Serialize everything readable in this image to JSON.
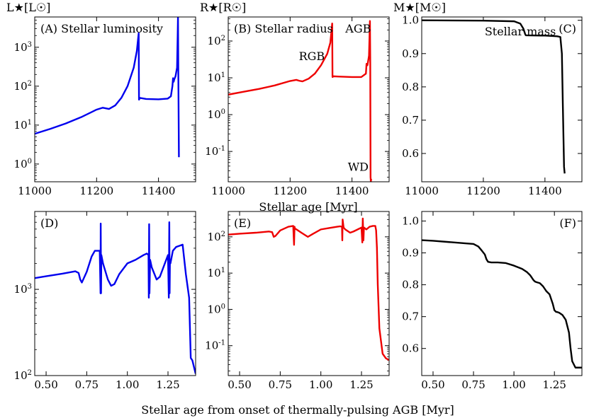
{
  "figure": {
    "xlabel_top": "Stellar age [Myr]",
    "xlabel_bottom": "Stellar age from onset of thermally-pulsing AGB [Myr]"
  },
  "chart_data": [
    {
      "id": "A",
      "type": "line",
      "panel_label": "(A) Stellar luminosity",
      "ylabel": "L★[L☉]",
      "yscale": "log",
      "ylim": [
        0.35,
        6000
      ],
      "xlim": [
        11000,
        11520
      ],
      "xticks": [
        11000,
        11200,
        11400
      ],
      "yticks": [
        1,
        10,
        100,
        1000
      ],
      "ytick_labels": [
        "10^0",
        "10^1",
        "10^2",
        "10^3"
      ],
      "series": [
        {
          "name": "Luminosity",
          "color": "#0000ee",
          "x": [
            11000,
            11050,
            11100,
            11150,
            11200,
            11220,
            11230,
            11240,
            11260,
            11280,
            11300,
            11320,
            11330,
            11336,
            11337,
            11340,
            11360,
            11400,
            11430,
            11440,
            11445,
            11447,
            11449,
            11450,
            11451,
            11455,
            11460,
            11462,
            11463,
            11464,
            11466
          ],
          "y": [
            6,
            8,
            11,
            16,
            25,
            28,
            27,
            26,
            32,
            50,
            100,
            300,
            800,
            2300,
            45,
            50,
            47,
            46,
            48,
            55,
            100,
            160,
            130,
            140,
            150,
            180,
            300,
            2000,
            6000,
            300,
            1.5
          ]
        }
      ],
      "annotations": []
    },
    {
      "id": "B",
      "type": "line",
      "panel_label": "(B) Stellar radius",
      "ylabel": "R★[R☉]",
      "yscale": "log",
      "ylim": [
        0.015,
        450
      ],
      "xlim": [
        11000,
        11520
      ],
      "xticks": [
        11000,
        11200,
        11400
      ],
      "yticks": [
        0.1,
        1,
        10,
        100
      ],
      "ytick_labels": [
        "10^-1",
        "10^0",
        "10^1",
        "10^2"
      ],
      "series": [
        {
          "name": "Radius",
          "color": "#ee0000",
          "x": [
            11000,
            11050,
            11100,
            11150,
            11200,
            11220,
            11230,
            11240,
            11260,
            11280,
            11300,
            11320,
            11330,
            11336,
            11337,
            11340,
            11360,
            11400,
            11430,
            11445,
            11447,
            11450,
            11455,
            11458,
            11459,
            11460,
            11461,
            11462
          ],
          "y": [
            3.5,
            4.2,
            5.0,
            6.2,
            8.2,
            8.8,
            8.3,
            8.0,
            9.5,
            13,
            22,
            45,
            90,
            300,
            10.5,
            11,
            10.8,
            10.5,
            10.5,
            13,
            24,
            22,
            40,
            350,
            30,
            0.02,
            0.015,
            0.018
          ]
        }
      ],
      "annotations": [
        {
          "text": "RGB",
          "x": 11270,
          "y": 30
        },
        {
          "text": "AGB",
          "x": 11420,
          "y": 170
        },
        {
          "text": "WD",
          "x": 11420,
          "y": 0.03
        }
      ]
    },
    {
      "id": "C",
      "type": "line",
      "panel_label": "(C)",
      "ylabel": "M★[M☉]",
      "yscale": "linear",
      "ylim": [
        0.515,
        1.01
      ],
      "xlim": [
        11000,
        11520
      ],
      "xticks": [
        11000,
        11200,
        11400
      ],
      "yticks": [
        0.6,
        0.7,
        0.8,
        0.9,
        1.0
      ],
      "ytick_labels": [
        "0.6",
        "0.7",
        "0.8",
        "0.9",
        "1.0"
      ],
      "series": [
        {
          "name": "Stellar mass",
          "color": "#000000",
          "x": [
            11000,
            11200,
            11300,
            11320,
            11330,
            11336,
            11338,
            11400,
            11440,
            11450,
            11455,
            11458,
            11462,
            11464
          ],
          "y": [
            1.0,
            0.999,
            0.997,
            0.99,
            0.975,
            0.958,
            0.955,
            0.954,
            0.952,
            0.95,
            0.9,
            0.75,
            0.56,
            0.54
          ]
        }
      ],
      "annotations": [
        {
          "text": "Stellar mass",
          "x": 11320,
          "y": 0.955
        }
      ]
    },
    {
      "id": "D",
      "type": "line",
      "panel_label": "(D)",
      "ylabel": "",
      "yscale": "log",
      "ylim": [
        100,
        8000
      ],
      "xlim": [
        0.43,
        1.42
      ],
      "xticks": [
        0.5,
        0.75,
        1.0,
        1.25
      ],
      "yticks": [
        100,
        1000
      ],
      "ytick_labels": [
        "10^2",
        "10^3"
      ],
      "series": [
        {
          "name": "Luminosity",
          "color": "#0000ee",
          "x": [
            0.43,
            0.5,
            0.6,
            0.68,
            0.7,
            0.71,
            0.72,
            0.75,
            0.78,
            0.8,
            0.83,
            0.835,
            0.836,
            0.838,
            0.84,
            0.85,
            0.88,
            0.9,
            0.92,
            0.95,
            1.0,
            1.05,
            1.1,
            1.12,
            1.13,
            1.132,
            1.134,
            1.136,
            1.14,
            1.15,
            1.18,
            1.2,
            1.25,
            1.255,
            1.258,
            1.26,
            1.262,
            1.265,
            1.28,
            1.3,
            1.34,
            1.36,
            1.38,
            1.39,
            1.4,
            1.42
          ],
          "y": [
            1350,
            1420,
            1520,
            1620,
            1550,
            1300,
            1200,
            1600,
            2400,
            2800,
            2800,
            900,
            5800,
            900,
            2500,
            2000,
            1300,
            1100,
            1150,
            1500,
            2000,
            2200,
            2500,
            2600,
            2500,
            800,
            5700,
            900,
            2200,
            1800,
            1300,
            1400,
            2500,
            800,
            6000,
            900,
            2200,
            2000,
            2800,
            3100,
            3300,
            1500,
            800,
            160,
            150,
            105
          ]
        }
      ],
      "annotations": []
    },
    {
      "id": "E",
      "type": "line",
      "panel_label": "(E)",
      "ylabel": "",
      "yscale": "log",
      "ylim": [
        0.015,
        500
      ],
      "xlim": [
        0.43,
        1.42
      ],
      "xticks": [
        0.5,
        0.75,
        1.0,
        1.25
      ],
      "yticks": [
        0.1,
        1,
        10,
        100
      ],
      "ytick_labels": [
        "10^-1",
        "10^0",
        "10^1",
        "10^2"
      ],
      "series": [
        {
          "name": "Radius",
          "color": "#ee0000",
          "x": [
            0.43,
            0.5,
            0.6,
            0.68,
            0.7,
            0.71,
            0.72,
            0.75,
            0.8,
            0.83,
            0.835,
            0.838,
            0.84,
            0.85,
            0.88,
            0.92,
            0.95,
            1.0,
            1.05,
            1.1,
            1.12,
            1.13,
            1.132,
            1.134,
            1.14,
            1.15,
            1.18,
            1.2,
            1.25,
            1.255,
            1.258,
            1.262,
            1.265,
            1.28,
            1.3,
            1.32,
            1.335,
            1.34,
            1.345,
            1.35,
            1.36,
            1.38,
            1.4,
            1.42
          ],
          "y": [
            115,
            122,
            130,
            140,
            135,
            100,
            105,
            150,
            190,
            200,
            60,
            190,
            170,
            160,
            130,
            100,
            120,
            160,
            175,
            190,
            195,
            190,
            80,
            300,
            180,
            160,
            130,
            140,
            180,
            70,
            320,
            80,
            180,
            160,
            190,
            200,
            200,
            150,
            50,
            5,
            0.3,
            0.06,
            0.045,
            0.04
          ]
        }
      ],
      "annotations": []
    },
    {
      "id": "F",
      "type": "line",
      "panel_label": "(F)",
      "ylabel": "",
      "yscale": "linear",
      "ylim": [
        0.515,
        1.03
      ],
      "xlim": [
        0.43,
        1.42
      ],
      "xticks": [
        0.5,
        0.75,
        1.0,
        1.25
      ],
      "yticks": [
        0.6,
        0.7,
        0.8,
        0.9,
        1.0
      ],
      "ytick_labels": [
        "0.6",
        "0.7",
        "0.8",
        "0.9",
        "1.0"
      ],
      "series": [
        {
          "name": "Stellar mass",
          "color": "#000000",
          "x": [
            0.43,
            0.5,
            0.6,
            0.7,
            0.75,
            0.78,
            0.8,
            0.82,
            0.83,
            0.84,
            0.86,
            0.9,
            0.95,
            1.0,
            1.05,
            1.08,
            1.1,
            1.12,
            1.13,
            1.14,
            1.16,
            1.18,
            1.2,
            1.22,
            1.24,
            1.25,
            1.26,
            1.27,
            1.28,
            1.3,
            1.32,
            1.34,
            1.35,
            1.36,
            1.38,
            1.4,
            1.42
          ],
          "y": [
            0.94,
            0.938,
            0.934,
            0.93,
            0.928,
            0.92,
            0.908,
            0.895,
            0.88,
            0.872,
            0.87,
            0.87,
            0.868,
            0.86,
            0.85,
            0.84,
            0.83,
            0.815,
            0.81,
            0.808,
            0.805,
            0.795,
            0.78,
            0.77,
            0.74,
            0.72,
            0.715,
            0.714,
            0.712,
            0.705,
            0.69,
            0.65,
            0.6,
            0.56,
            0.54,
            0.54,
            0.54
          ]
        }
      ],
      "annotations": []
    }
  ]
}
